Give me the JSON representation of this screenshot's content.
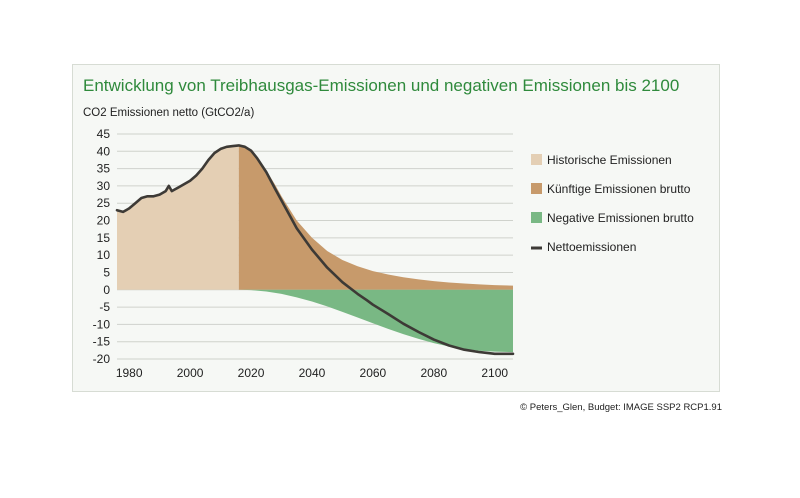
{
  "colors": {
    "historical": "#e4cfb4",
    "future_gross": "#c79a6b",
    "negative": "#79b884",
    "net": "#3d3a36",
    "grid": "#cfd2cc",
    "title": "#2f8a3c"
  },
  "credit": "© Peters_Glen, Budget: IMAGE SSP2 RCP1.91",
  "chart_data": {
    "type": "area",
    "title": "Entwicklung von Treibhausgas-Emissionen und negativen Emissionen bis 2100",
    "ylabel": "CO2 Emissionen netto (GtCO2/a)",
    "xlabel": "",
    "xlim": [
      1976,
      2106
    ],
    "ylim": [
      -20,
      45
    ],
    "yticks": [
      45,
      40,
      35,
      30,
      25,
      20,
      15,
      10,
      5,
      0,
      -5,
      -10,
      -15,
      -20
    ],
    "ytick_labels": [
      "45",
      "40",
      "35",
      "30",
      "25",
      "20",
      "15",
      "10",
      "5",
      "0",
      "-5",
      "-10",
      "-15",
      "-20"
    ],
    "xticks": [
      1980,
      2000,
      2020,
      2040,
      2060,
      2080,
      2100
    ],
    "xtick_labels": [
      "1980",
      "2000",
      "2020",
      "2040",
      "2060",
      "2080",
      "2100"
    ],
    "grid": true,
    "legend_position": "right",
    "legend": [
      {
        "name": "Historische Emissionen",
        "key": "historical",
        "shape": "square"
      },
      {
        "name": "Künftige Emissionen brutto",
        "key": "future_gross",
        "shape": "square"
      },
      {
        "name": "Negative Emissionen brutto",
        "key": "negative",
        "shape": "square"
      },
      {
        "name": "Nettoemissionen",
        "key": "net",
        "shape": "line"
      }
    ],
    "series": [
      {
        "name": "Historische Emissionen",
        "x": [
          1976,
          1978,
          1980,
          1982,
          1984,
          1986,
          1988,
          1990,
          1992,
          1993,
          1994,
          1995,
          1996,
          1998,
          2000,
          2002,
          2004,
          2006,
          2008,
          2010,
          2012,
          2014,
          2016
        ],
        "values": [
          23,
          22.5,
          23.5,
          25,
          26.5,
          27,
          27,
          27.5,
          28.5,
          30,
          28.5,
          29,
          29.5,
          30.5,
          31.5,
          33,
          35,
          37.5,
          39.5,
          40.7,
          41.3,
          41.5,
          41.7
        ]
      },
      {
        "name": "Künftige Emissionen brutto",
        "x": [
          2016,
          2018,
          2020,
          2022,
          2025,
          2028,
          2030,
          2035,
          2040,
          2045,
          2050,
          2055,
          2060,
          2065,
          2070,
          2075,
          2080,
          2085,
          2090,
          2095,
          2100,
          2106
        ],
        "values": [
          41.7,
          41.4,
          40.3,
          38.3,
          34.5,
          30.2,
          27,
          20,
          15,
          11.2,
          8.6,
          6.8,
          5.4,
          4.4,
          3.6,
          3,
          2.5,
          2.1,
          1.8,
          1.55,
          1.35,
          1.2
        ]
      },
      {
        "name": "Negative Emissionen brutto",
        "x": [
          2016,
          2020,
          2025,
          2030,
          2035,
          2040,
          2045,
          2050,
          2055,
          2060,
          2065,
          2070,
          2075,
          2080,
          2085,
          2090,
          2095,
          2100,
          2106
        ],
        "values": [
          0,
          -0.1,
          -0.5,
          -1.2,
          -2.2,
          -3.4,
          -4.8,
          -6.4,
          -8,
          -9.7,
          -11.3,
          -12.8,
          -14.2,
          -15.4,
          -16.4,
          -17.1,
          -17.6,
          -17.85,
          -18
        ]
      },
      {
        "name": "Nettoemissionen",
        "x": [
          1976,
          1978,
          1980,
          1982,
          1984,
          1986,
          1988,
          1990,
          1992,
          1993,
          1994,
          1995,
          1996,
          1998,
          2000,
          2002,
          2004,
          2006,
          2008,
          2010,
          2012,
          2014,
          2016,
          2018,
          2020,
          2022,
          2025,
          2028,
          2030,
          2035,
          2040,
          2045,
          2050,
          2055,
          2058,
          2060,
          2065,
          2070,
          2075,
          2080,
          2085,
          2090,
          2095,
          2100,
          2106
        ],
        "values": [
          23,
          22.5,
          23.5,
          25,
          26.5,
          27,
          27,
          27.5,
          28.5,
          30,
          28.5,
          29,
          29.5,
          30.5,
          31.5,
          33,
          35,
          37.5,
          39.5,
          40.7,
          41.3,
          41.5,
          41.7,
          41.3,
          40.2,
          38,
          34,
          29,
          25.8,
          17.8,
          11.6,
          6.4,
          2.2,
          -1.2,
          -3,
          -4.3,
          -7,
          -9.8,
          -12.2,
          -14.4,
          -16.1,
          -17.3,
          -18,
          -18.5,
          -18.5
        ]
      }
    ]
  }
}
